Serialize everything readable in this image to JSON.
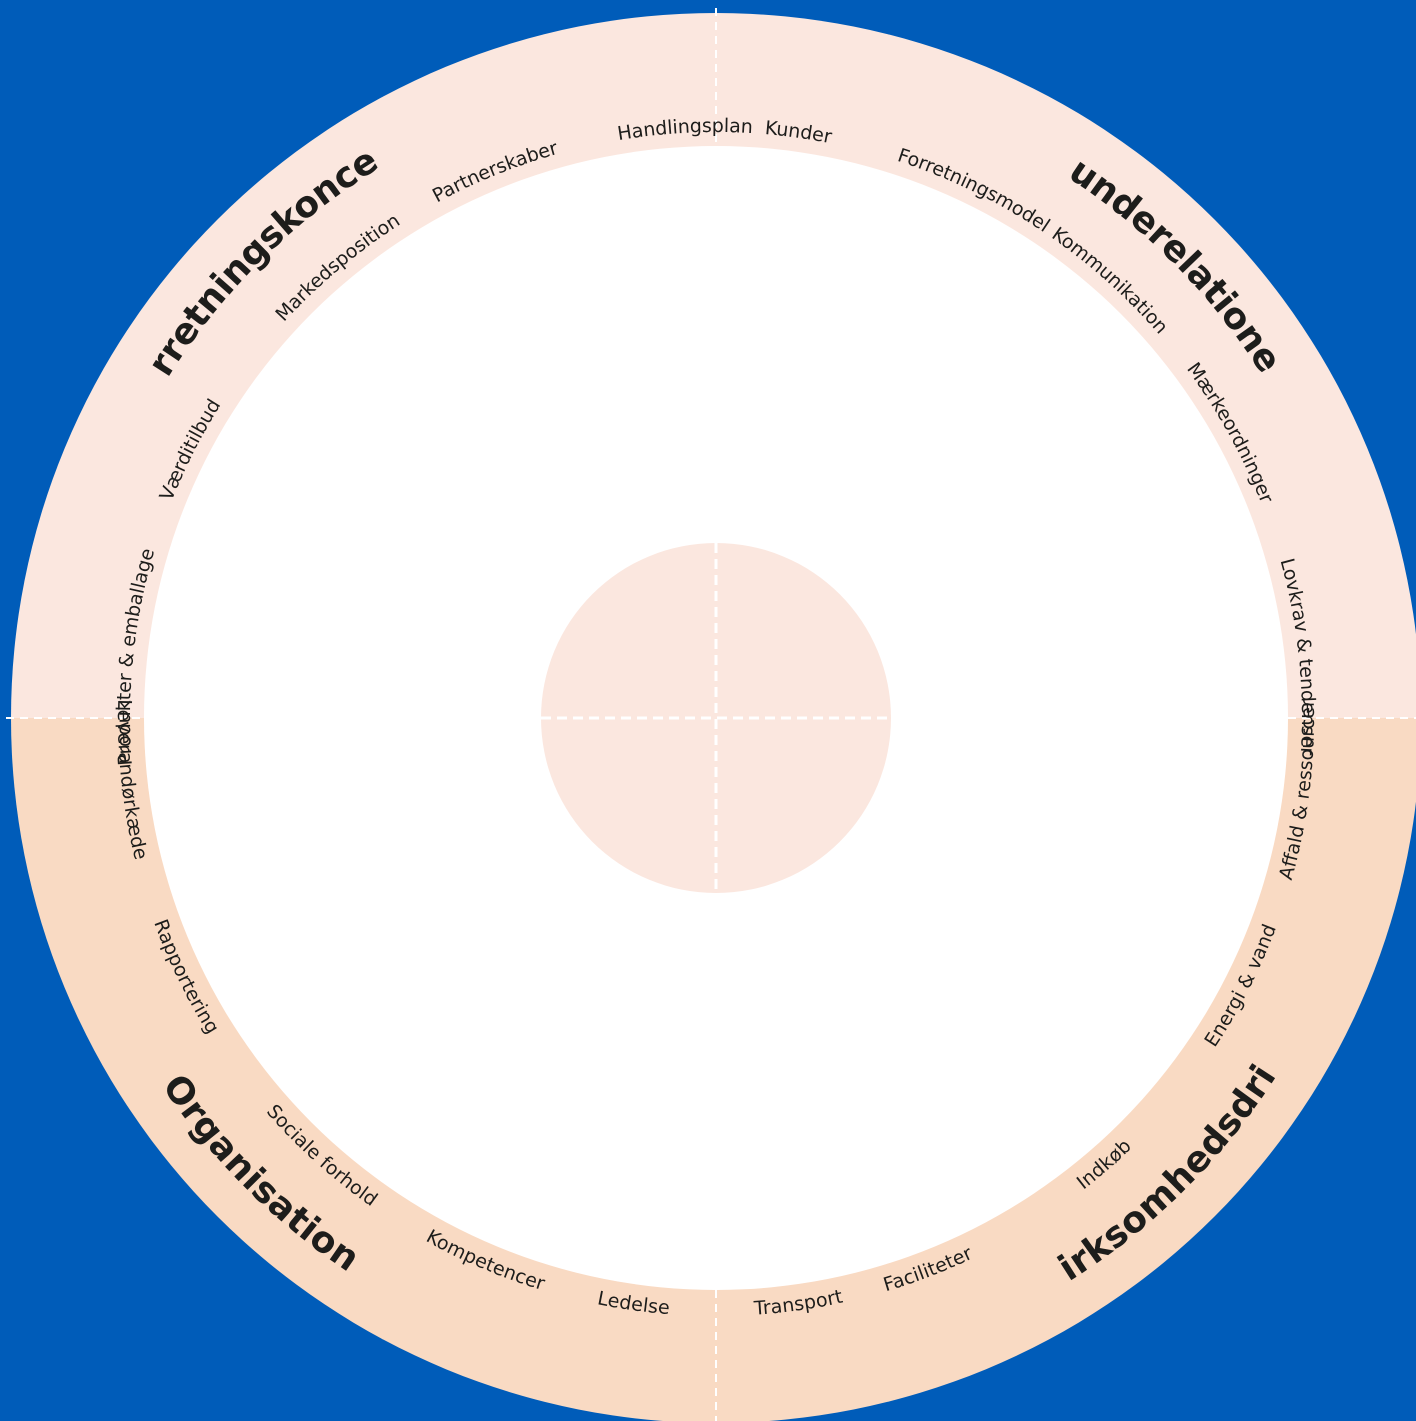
{
  "colors": {
    "background": "#005cb9",
    "top_half": "#fbe7df",
    "bottom_half": "#f9dac3",
    "inner_circle": "#ffffff",
    "center_circle": "#fbe7df",
    "divider": "#ffffff",
    "text": "#1d1d1b"
  },
  "wheel": {
    "quadrants": [
      {
        "id": "forretningskoncept",
        "title": "Forretningskoncept",
        "topics": [
          "Handlingsplan",
          "Partnerskaber",
          "Markedsposition",
          "Værditilbud",
          "Produkter & emballage"
        ]
      },
      {
        "id": "kunderelationer",
        "title": "Kunderelationer",
        "topics": [
          "Kunder",
          "Forretningsmodel",
          "Kommunikation",
          "Mærkeordninger",
          "Lovkrav & tendenser"
        ]
      },
      {
        "id": "virksomhedsdrift",
        "title": "Virksomhedsdrift",
        "topics": [
          "Affald & ressourcer",
          "Energi & vand",
          "Indkøb",
          "Faciliteter",
          "Transport"
        ]
      },
      {
        "id": "organisation",
        "title": "Organisation",
        "topics": [
          "Leverandørkæde",
          "Rapportering",
          "Sociale forhold",
          "Kompetencer",
          "Ledelse"
        ]
      }
    ]
  }
}
